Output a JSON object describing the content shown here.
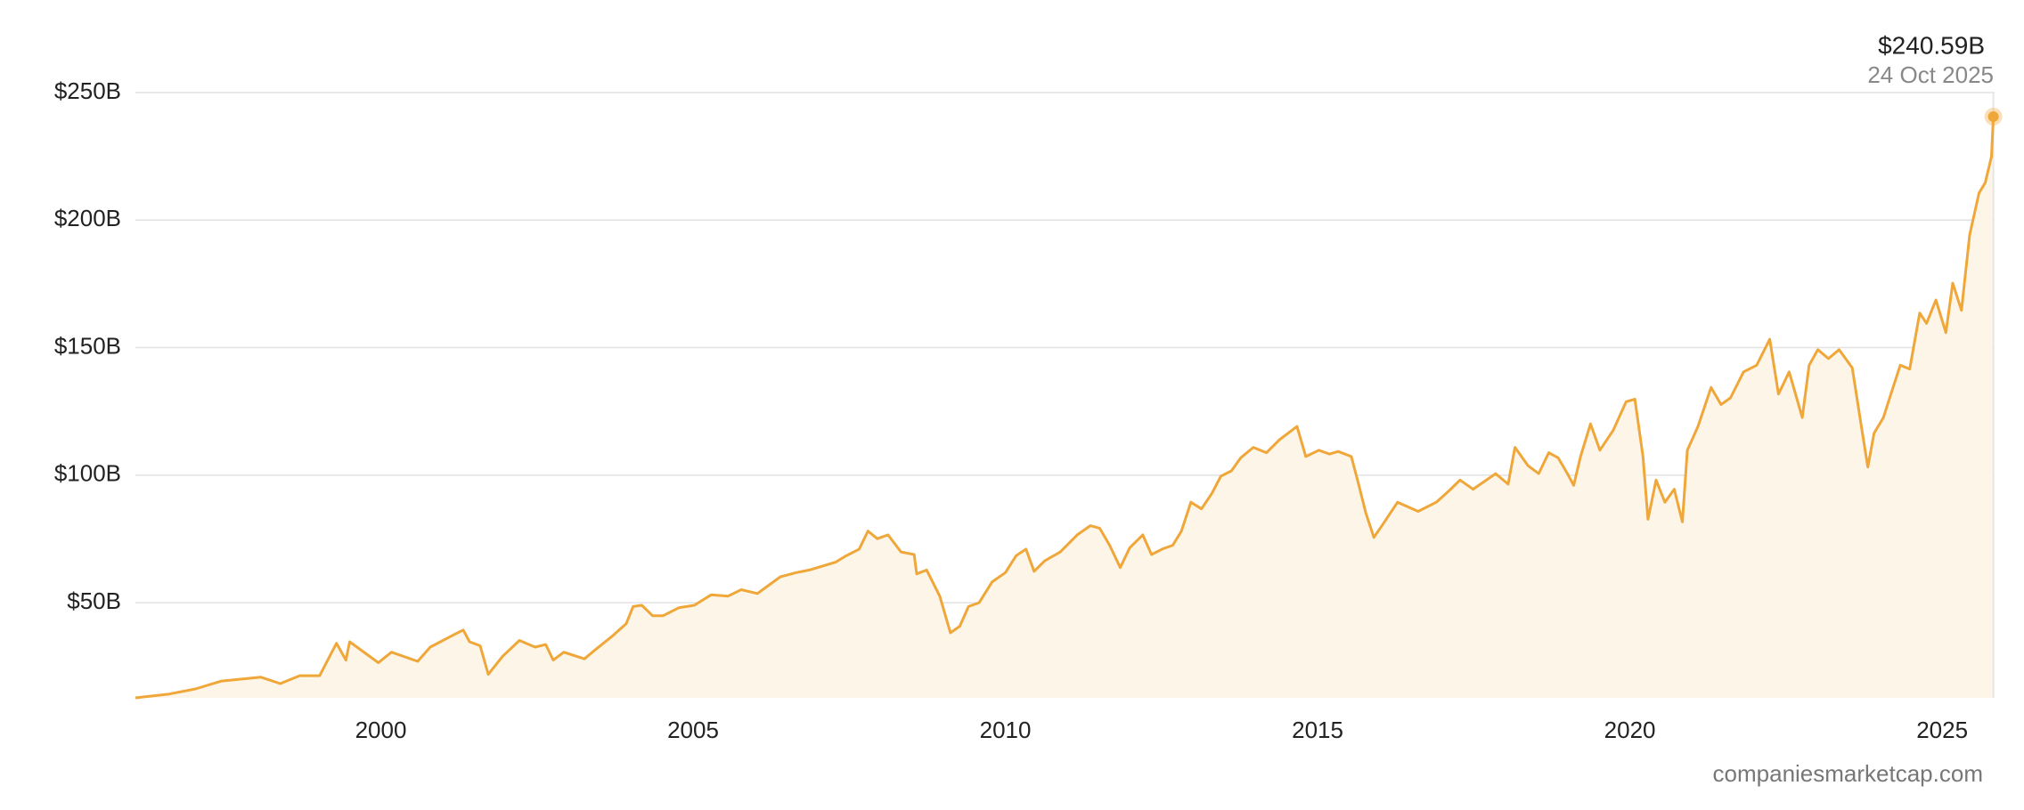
{
  "chart_data": {
    "type": "area",
    "x": [
      1996.07,
      1996.61,
      1997.03,
      1997.45,
      1998.08,
      1998.39,
      1998.7,
      1999.02,
      1999.29,
      1999.44,
      1999.5,
      1999.96,
      2000.17,
      2000.59,
      2000.79,
      2001.15,
      2001.32,
      2001.42,
      2001.59,
      2001.72,
      2001.95,
      2002.22,
      2002.47,
      2002.64,
      2002.76,
      2002.93,
      2003.26,
      2003.41,
      2003.72,
      2003.93,
      2004.04,
      2004.18,
      2004.35,
      2004.52,
      2004.77,
      2005.02,
      2005.29,
      2005.56,
      2005.77,
      2006.03,
      2006.23,
      2006.4,
      2006.65,
      2006.86,
      2007.28,
      2007.45,
      2007.66,
      2007.8,
      2007.95,
      2008.12,
      2008.33,
      2008.54,
      2008.58,
      2008.74,
      2008.95,
      2009.12,
      2009.27,
      2009.41,
      2009.58,
      2009.79,
      2010.0,
      2010.17,
      2010.33,
      2010.46,
      2010.63,
      2010.88,
      2011.15,
      2011.36,
      2011.51,
      2011.67,
      2011.84,
      2011.99,
      2012.2,
      2012.34,
      2012.51,
      2012.68,
      2012.82,
      2012.97,
      2013.14,
      2013.31,
      2013.45,
      2013.62,
      2013.77,
      2013.97,
      2014.18,
      2014.39,
      2014.67,
      2014.81,
      2015.02,
      2015.19,
      2015.33,
      2015.54,
      2015.65,
      2015.77,
      2015.9,
      2016.07,
      2016.28,
      2016.61,
      2016.9,
      2017.11,
      2017.28,
      2017.49,
      2017.85,
      2018.05,
      2018.16,
      2018.37,
      2018.54,
      2018.7,
      2018.85,
      2019.0,
      2019.1,
      2019.21,
      2019.37,
      2019.52,
      2019.73,
      2019.94,
      2020.08,
      2020.21,
      2020.29,
      2020.42,
      2020.56,
      2020.71,
      2020.84,
      2020.92,
      2021.09,
      2021.3,
      2021.46,
      2021.61,
      2021.82,
      2022.03,
      2022.24,
      2022.38,
      2022.55,
      2022.76,
      2022.87,
      2023.01,
      2023.18,
      2023.35,
      2023.56,
      2023.7,
      2023.81,
      2023.91,
      2024.06,
      2024.18,
      2024.33,
      2024.48,
      2024.64,
      2024.75,
      2024.9,
      2025.06,
      2025.17,
      2025.31,
      2025.44,
      2025.59,
      2025.69,
      2025.79,
      2025.82
    ],
    "values": [
      12.7,
      14.2,
      16.2,
      19.3,
      20.8,
      18.3,
      21.4,
      21.4,
      34.1,
      27.5,
      34.7,
      26.5,
      30.6,
      27.0,
      32.6,
      37.2,
      39.3,
      34.7,
      33.1,
      21.9,
      29.0,
      35.2,
      32.6,
      33.6,
      27.5,
      30.6,
      28.0,
      31.1,
      37.2,
      41.8,
      48.5,
      49.0,
      44.9,
      44.9,
      48.0,
      49.0,
      53.1,
      52.6,
      55.1,
      53.6,
      57.2,
      60.2,
      61.8,
      62.8,
      65.9,
      68.4,
      71.0,
      78.1,
      75.1,
      76.6,
      69.9,
      68.9,
      61.3,
      62.8,
      52.6,
      38.2,
      40.8,
      48.5,
      50.0,
      58.2,
      61.8,
      68.4,
      71.0,
      62.3,
      66.4,
      69.9,
      76.6,
      80.2,
      79.2,
      72.5,
      63.8,
      71.5,
      76.6,
      68.9,
      71.0,
      72.5,
      78.1,
      89.4,
      86.8,
      93.0,
      99.6,
      101.7,
      106.8,
      110.9,
      108.8,
      113.9,
      119.1,
      107.3,
      109.8,
      108.3,
      109.3,
      107.3,
      97.1,
      85.3,
      75.6,
      81.7,
      89.4,
      85.8,
      89.4,
      94.0,
      98.1,
      94.5,
      100.6,
      96.5,
      110.9,
      103.7,
      100.6,
      108.8,
      106.8,
      100.6,
      96.0,
      107.3,
      120.1,
      109.8,
      117.5,
      128.8,
      129.8,
      107.3,
      82.7,
      98.1,
      89.4,
      94.5,
      81.7,
      109.8,
      119.1,
      134.4,
      127.7,
      130.3,
      140.5,
      143.1,
      153.3,
      131.8,
      140.5,
      122.6,
      143.1,
      149.2,
      145.7,
      149.2,
      142.1,
      120.1,
      103.2,
      116.5,
      122.6,
      131.8,
      143.1,
      141.6,
      163.6,
      159.5,
      168.7,
      155.9,
      175.3,
      164.6,
      194.2,
      210.6,
      214.7,
      224.9,
      240.59
    ],
    "color": "#f0a73a",
    "fill_color": "#fdf5e7",
    "xlim": [
      1996.07,
      2025.84
    ],
    "xticks": [
      2000,
      2005,
      2010,
      2015,
      2020,
      2025
    ],
    "ylim": [
      12.7,
      250
    ],
    "yticks": [
      {
        "value": 50,
        "label": "$50B"
      },
      {
        "value": 100,
        "label": "$100B"
      },
      {
        "value": 150,
        "label": "$150B"
      },
      {
        "value": 200,
        "label": "$200B"
      },
      {
        "value": 250,
        "label": "$250B"
      }
    ],
    "grid": true,
    "annotation": {
      "text": "$240.59B",
      "date": "24 Oct 2025"
    },
    "source": "companiesmarketcap.com"
  }
}
